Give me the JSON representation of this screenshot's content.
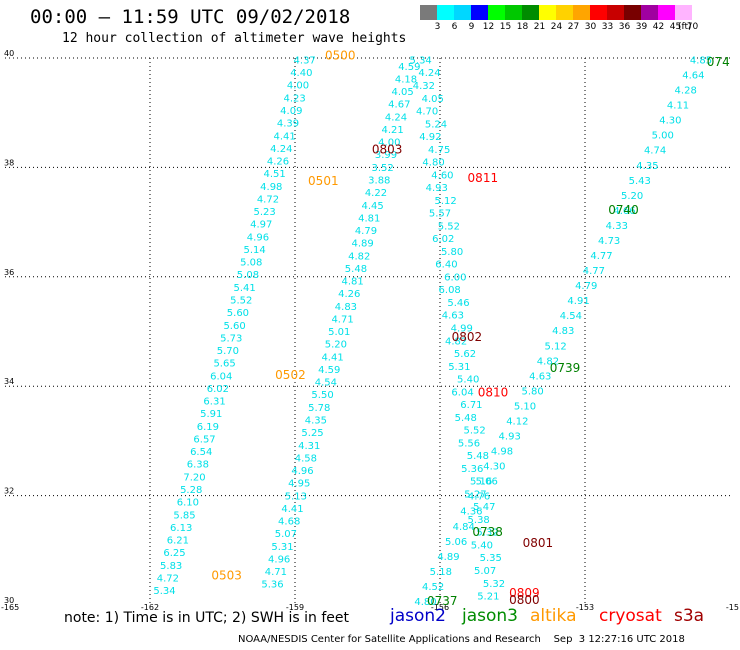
{
  "header": {
    "title": "00:00 – 11:59 UTC 09/02/2018",
    "subtitle": "12 hour collection of altimeter wave heights"
  },
  "legend": {
    "unit": "(ft)",
    "colors": [
      "#7a7a7a",
      "#00ffff",
      "#00d7ff",
      "#0000ff",
      "#00ff00",
      "#00c800",
      "#008c00",
      "#ffff00",
      "#ffd200",
      "#ffa500",
      "#ff0000",
      "#c80000",
      "#780000",
      "#a000a0",
      "#ff00ff",
      "#ffb4ff"
    ],
    "labels": [
      "",
      "3",
      "6",
      "9",
      "12",
      "15",
      "18",
      "21",
      "24",
      "27",
      "30",
      "33",
      "36",
      "39",
      "42",
      "45",
      "70"
    ]
  },
  "axes": {
    "lat_ticks": [
      {
        "value": 40,
        "label": "40"
      },
      {
        "value": 38,
        "label": "38"
      },
      {
        "value": 36,
        "label": "36"
      },
      {
        "value": 34,
        "label": "34"
      },
      {
        "value": 32,
        "label": "32"
      },
      {
        "value": 30,
        "label": "30"
      }
    ],
    "lon_ticks": [
      {
        "value": -165,
        "label": "-165"
      },
      {
        "value": -162,
        "label": "-162"
      },
      {
        "value": -159,
        "label": "-159"
      },
      {
        "value": -156,
        "label": "-156"
      },
      {
        "value": -153,
        "label": "-153"
      },
      {
        "value": -150,
        "label": "-15"
      }
    ],
    "lat_range": [
      30,
      40
    ],
    "lon_range": [
      -165,
      -150
    ]
  },
  "passes": [
    {
      "satellite": "jason2",
      "color": "#00e0e8",
      "values": [
        "4.37",
        "4.59",
        "4.40",
        "4.18",
        "4.00",
        "4.05",
        "4.23",
        "4.67",
        "4.09",
        "4.24",
        "4.39",
        "4.21",
        "4.41",
        "4.00",
        "4.24",
        "3.99",
        "4.26",
        "3.52",
        "4.51",
        "3.88",
        "4.98",
        "4.22",
        "4.72",
        "4.45",
        "5.23",
        "4.81",
        "4.97",
        "4.79",
        "4.96",
        "4.89",
        "5.14",
        "4.82",
        "5.08",
        "5.48",
        "5.08",
        "4.81",
        "5.41",
        "4.26",
        "5.52",
        "4.83",
        "5.60",
        "4.71",
        "5.60",
        "5.01",
        "5.73",
        "5.20",
        "5.70",
        "4.41",
        "5.65",
        "4.59",
        "6.04",
        "4.54",
        "6.02",
        "5.50",
        "6.31",
        "5.78",
        "5.91",
        "4.35",
        "6.19",
        "5.25",
        "6.57",
        "4.31",
        "6.54",
        "4.58",
        "6.38",
        "4.96",
        "7.20",
        "4.95",
        "5.28",
        "5.13",
        "6.10",
        "4.41",
        "5.85",
        "4.68",
        "6.13",
        "5.07",
        "6.21",
        "5.31",
        "6.25",
        "4.96",
        "5.83",
        "4.71",
        "4.72",
        "5.36",
        "5.34"
      ],
      "time_labels": [
        {
          "text": "0500",
          "color": "#ff9900",
          "lat": 39.97,
          "lon": -158.38
        },
        {
          "text": "0501",
          "color": "#ff9900",
          "lat": 37.68,
          "lon": -158.73
        },
        {
          "text": "0502",
          "color": "#ff9900",
          "lat": 34.13,
          "lon": -159.41
        },
        {
          "text": "0503",
          "color": "#ff9900",
          "lat": 30.47,
          "lon": -160.73
        }
      ]
    },
    {
      "satellite": "jason3",
      "color": "#00e0e8",
      "values": [
        "5.34",
        "4.24",
        "4.32",
        "4.05",
        "4.70",
        "5.24",
        "4.92",
        "4.75",
        "4.80",
        "4.60",
        "4.93",
        "5.12",
        "5.57",
        "5.52",
        "6.02",
        "5.80",
        "6.40",
        "6.00",
        "6.08",
        "5.46",
        "4.63",
        "4.99",
        "4.82",
        "5.62",
        "5.31",
        "5.40",
        "6.04",
        "6.71",
        "5.48",
        "5.52",
        "5.56",
        "5.48",
        "5.36",
        "5.16",
        "5.27",
        "5.47",
        "5.38",
        "5.32",
        "5.40",
        "5.35",
        "5.07",
        "5.32",
        "5.21"
      ],
      "time_labels": [
        {
          "text": "0803",
          "color": "#800000",
          "lat": 38.25,
          "lon": -157.41
        },
        {
          "text": "0811",
          "color": "#ff0000",
          "lat": 37.73,
          "lon": -155.43
        },
        {
          "text": "0802",
          "color": "#800000",
          "lat": 34.83,
          "lon": -155.76
        },
        {
          "text": "0810",
          "color": "#ff0000",
          "lat": 33.81,
          "lon": -155.22
        },
        {
          "text": "0801",
          "color": "#800000",
          "lat": 31.06,
          "lon": -154.29
        },
        {
          "text": "0809",
          "color": "#ff0000",
          "lat": 30.15,
          "lon": -154.57
        },
        {
          "text": "0800",
          "color": "#800000",
          "lat": 30.02,
          "lon": -154.57
        }
      ]
    },
    {
      "satellite": "altika",
      "color": "#00e0e8",
      "values": [
        "4.85",
        "4.64",
        "4.28",
        "4.11",
        "4.30",
        "5.00",
        "4.74",
        "4.35",
        "5.43",
        "5.20",
        "4.66",
        "4.33",
        "4.73",
        "4.77",
        "4.77",
        "4.79",
        "4.91",
        "4.54",
        "4.83",
        "5.12",
        "4.82",
        "4.63",
        "5.80",
        "5.10",
        "4.12",
        "4.93",
        "4.98",
        "4.30",
        "5.06",
        "4.76",
        "4.36",
        "4.84",
        "5.06",
        "4.89",
        "5.18",
        "4.52",
        "4.80"
      ],
      "time_labels": [
        {
          "text": "074",
          "color": "#008000",
          "lat": 39.85,
          "lon": -150.48
        },
        {
          "text": "0740",
          "color": "#008000",
          "lat": 37.15,
          "lon": -152.52
        },
        {
          "text": "0739",
          "color": "#008000",
          "lat": 34.26,
          "lon": -153.73
        },
        {
          "text": "0738",
          "color": "#008000",
          "lat": 31.26,
          "lon": -155.33
        },
        {
          "text": "0737",
          "color": "#008000",
          "lat": 30.0,
          "lon": -156.27
        }
      ]
    }
  ],
  "satellites_legend": [
    {
      "name": "jason2",
      "color": "#0000c8"
    },
    {
      "name": "jason3",
      "color": "#008c00"
    },
    {
      "name": "altika",
      "color": "#ff9900"
    },
    {
      "name": "cryosat",
      "color": "#ff0000"
    },
    {
      "name": "s3a",
      "color": "#a00000"
    }
  ],
  "note": "note: 1) Time is in UTC; 2) SWH is in feet",
  "footer": "NOAA/NESDIS Center for Satellite Applications and Research    Sep  3 12:27:16 UTC 2018"
}
